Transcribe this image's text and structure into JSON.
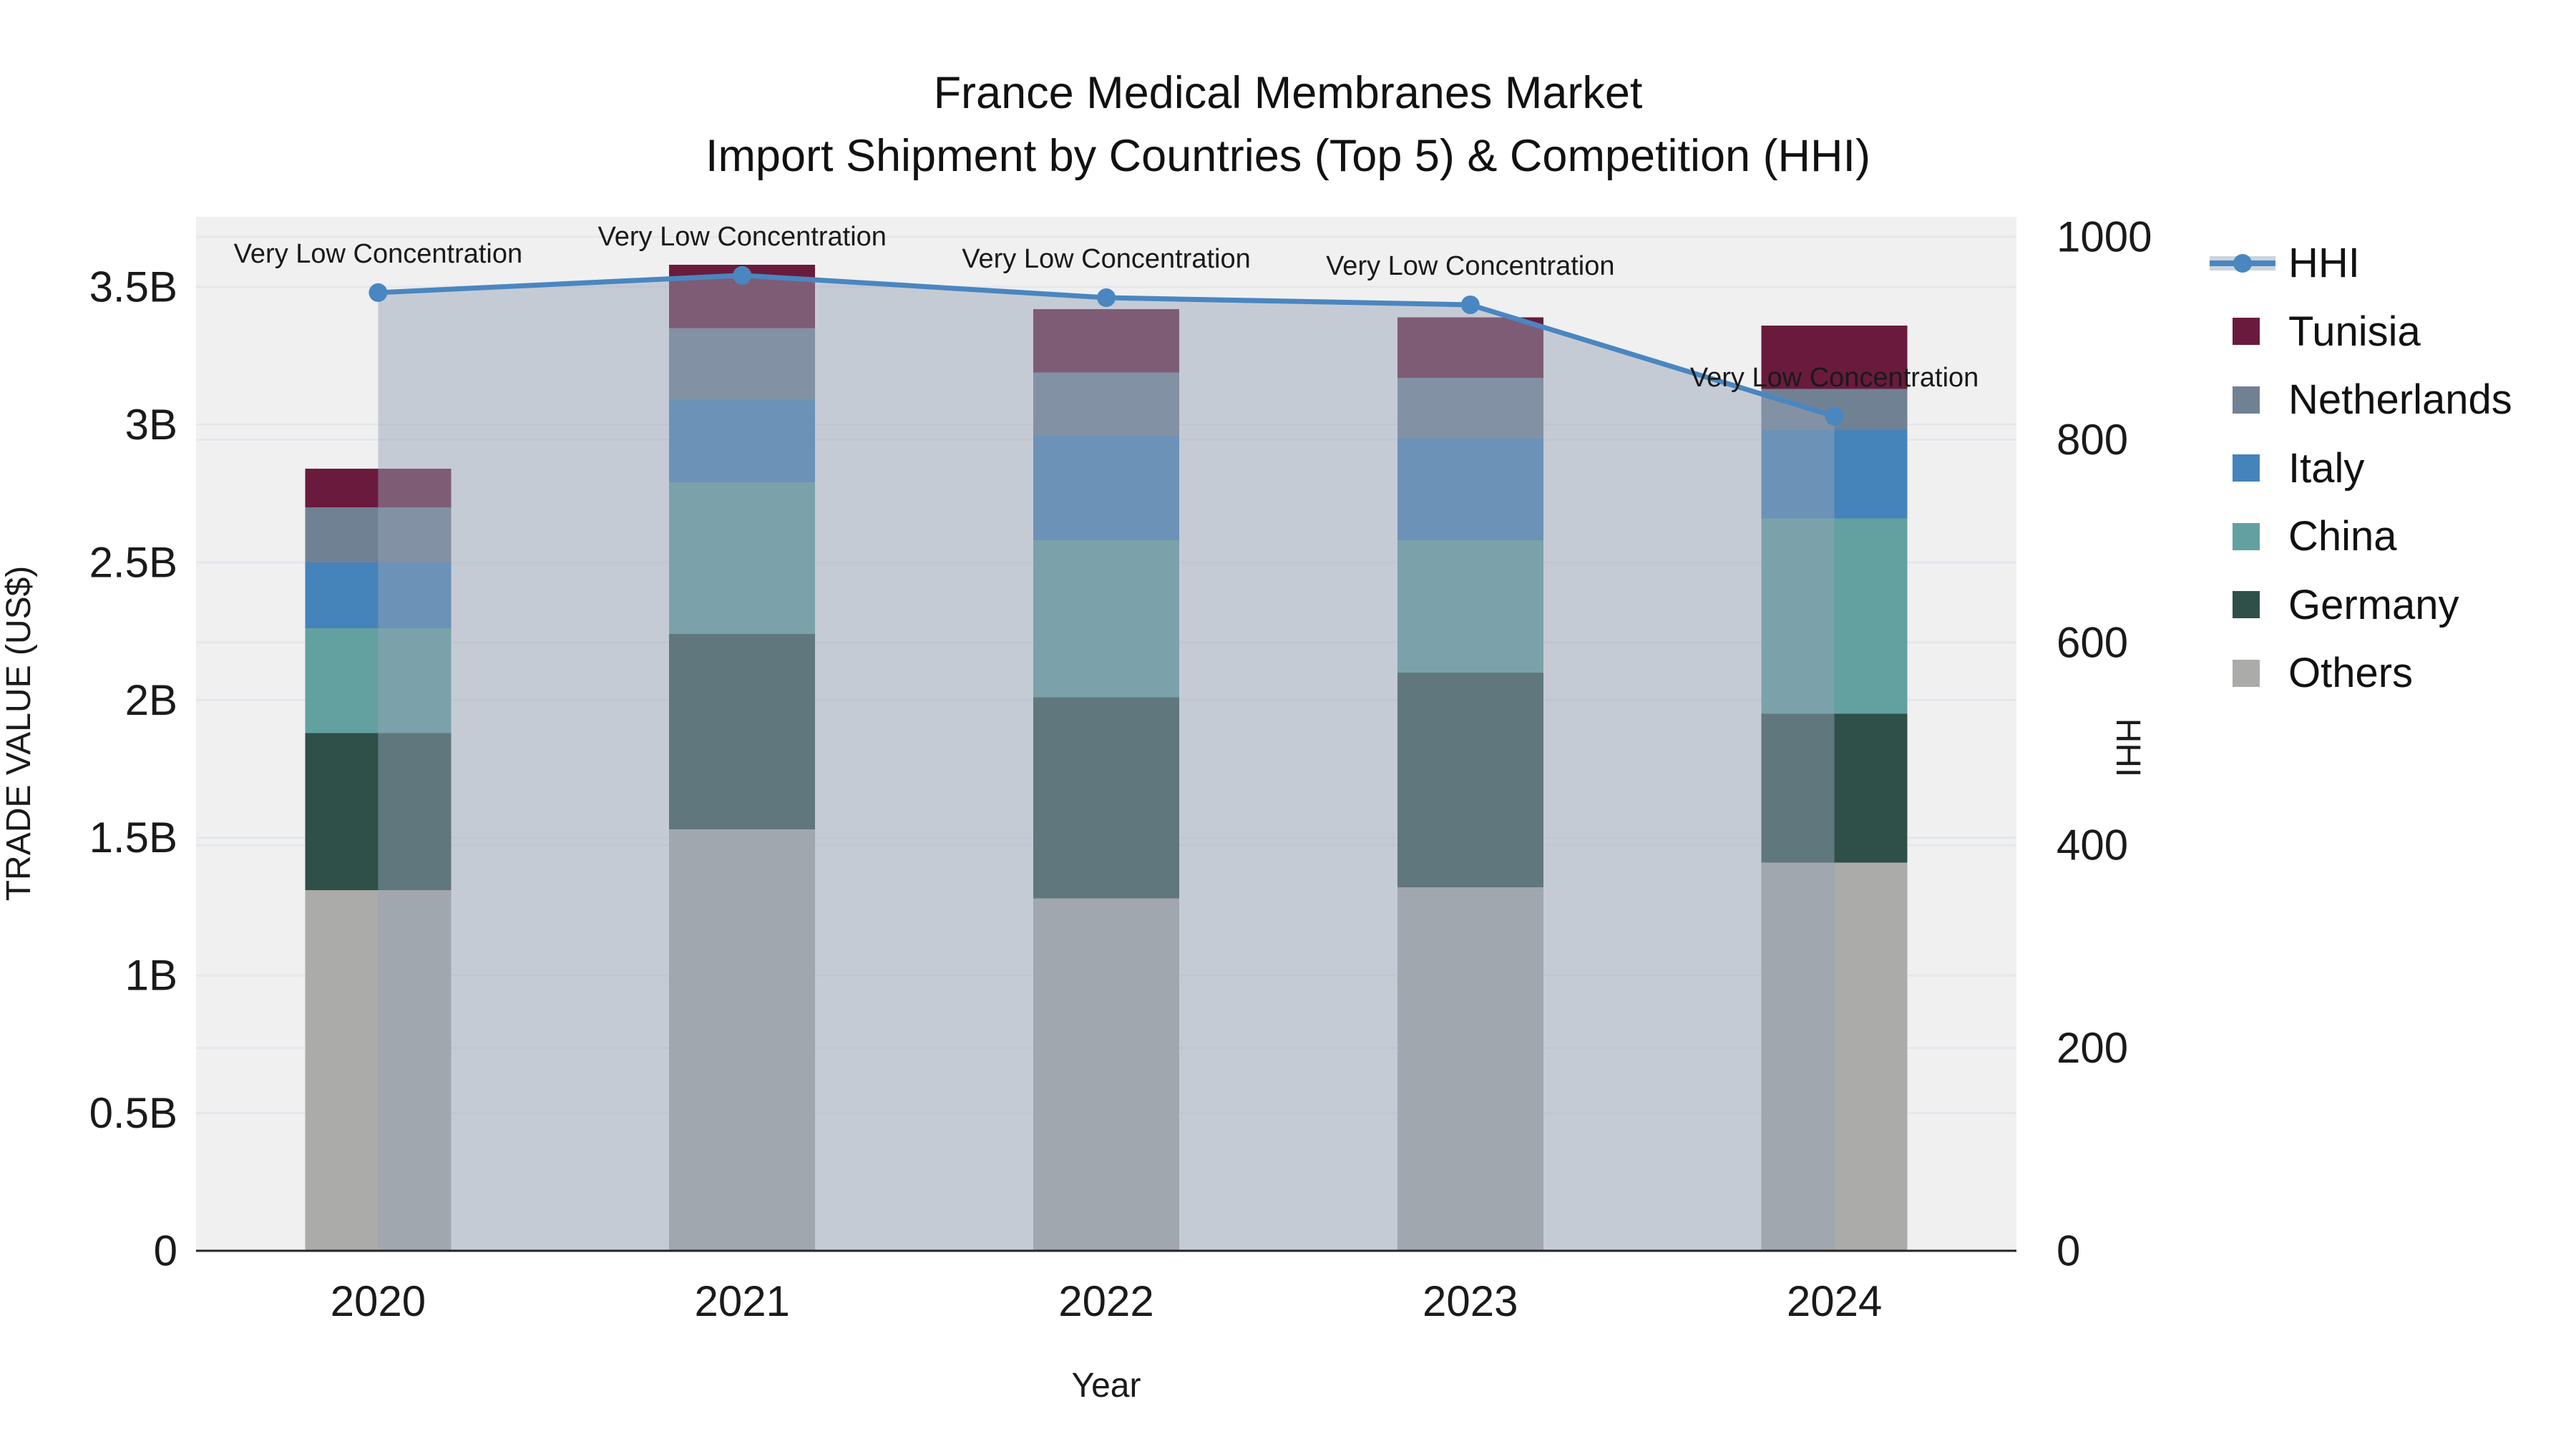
{
  "title": {
    "line1": "France Medical Membranes Market",
    "line2": "Import Shipment by Countries (Top 5) & Competition (HHI)"
  },
  "chart_data": {
    "type": "stacked-bar+line",
    "categories": [
      "2020",
      "2021",
      "2022",
      "2023",
      "2024"
    ],
    "x_axis": {
      "title": "Year"
    },
    "y_axis_left": {
      "title": "TRADE VALUE (US$)",
      "tick_labels": [
        "0",
        "0.5B",
        "1B",
        "1.5B",
        "2B",
        "2.5B",
        "3B",
        "3.5B"
      ],
      "tick_values": [
        0,
        0.5,
        1,
        1.5,
        2,
        2.5,
        3,
        3.5
      ],
      "range": [
        0,
        3.75
      ]
    },
    "y_axis_right": {
      "title": "HHI",
      "tick_labels": [
        "0",
        "200",
        "400",
        "600",
        "800",
        "1000"
      ],
      "tick_values": [
        0,
        200,
        400,
        600,
        800,
        1000
      ],
      "range": [
        0,
        1000
      ]
    },
    "bar_series": [
      {
        "name": "Others",
        "color": "#ababa9",
        "values": [
          1.31,
          1.53,
          1.28,
          1.32,
          1.41
        ]
      },
      {
        "name": "Germany",
        "color": "#2f4f49",
        "values": [
          0.57,
          0.71,
          0.73,
          0.78,
          0.54
        ]
      },
      {
        "name": "China",
        "color": "#62a1a0",
        "values": [
          0.38,
          0.55,
          0.57,
          0.48,
          0.71
        ]
      },
      {
        "name": "Italy",
        "color": "#4583bb",
        "values": [
          0.24,
          0.3,
          0.38,
          0.37,
          0.32
        ]
      },
      {
        "name": "Netherlands",
        "color": "#718194",
        "values": [
          0.2,
          0.26,
          0.23,
          0.22,
          0.15
        ]
      },
      {
        "name": "Tunisia",
        "color": "#6a1b3d",
        "values": [
          0.14,
          0.23,
          0.23,
          0.22,
          0.23
        ]
      }
    ],
    "bar_totals": [
      2.84,
      3.58,
      3.42,
      3.39,
      3.36
    ],
    "line_series": {
      "name": "HHI",
      "color": "#4a86c0",
      "area_fill": "rgba(150,164,182,0.48)",
      "values": [
        945,
        962,
        940,
        933,
        823
      ]
    },
    "annotations": [
      "Very Low Concentration",
      "Very Low Concentration",
      "Very Low Concentration",
      "Very Low Concentration",
      "Very Low Concentration"
    ],
    "legend": {
      "items": [
        {
          "label": "HHI",
          "type": "line",
          "color": "#4a86c0"
        },
        {
          "label": "Tunisia",
          "type": "swatch",
          "color": "#6a1b3d"
        },
        {
          "label": "Netherlands",
          "type": "swatch",
          "color": "#718194"
        },
        {
          "label": "Italy",
          "type": "swatch",
          "color": "#4583bb"
        },
        {
          "label": "China",
          "type": "swatch",
          "color": "#62a1a0"
        },
        {
          "label": "Germany",
          "type": "swatch",
          "color": "#2f4f49"
        },
        {
          "label": "Others",
          "type": "swatch",
          "color": "#ababa9"
        }
      ]
    },
    "style": {
      "plot_bg": "#f0f0f1",
      "grid_color": "#e4e7ec",
      "axis_line_color": "#262626",
      "legend_band": "#ccd4dd"
    }
  }
}
